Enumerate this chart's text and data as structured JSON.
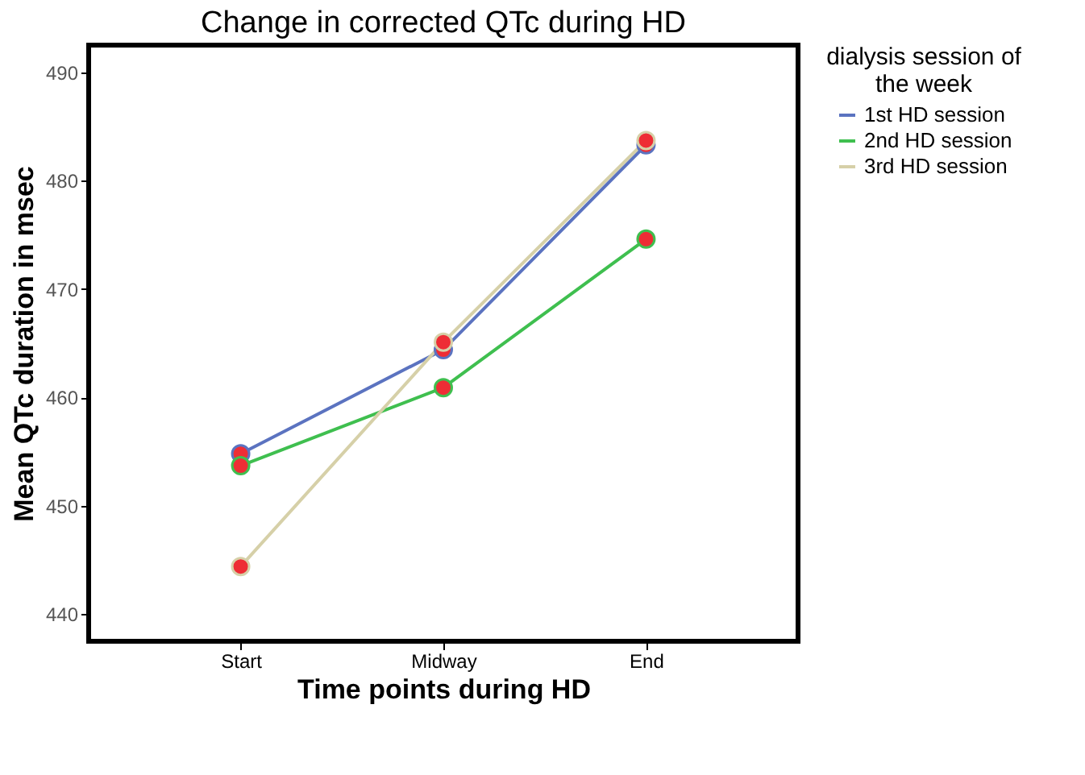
{
  "chart_data": {
    "type": "line",
    "title": "Change in corrected QTc during HD",
    "xlabel": "Time points during HD",
    "ylabel": "Mean QTc duration in msec",
    "legend_title": "dialysis session of the week",
    "categories": [
      "Start",
      "Midway",
      "End"
    ],
    "series": [
      {
        "name": "1st HD session",
        "color": "#5b73c0",
        "values": [
          454.8,
          464.4,
          483.3
        ]
      },
      {
        "name": "2nd HD session",
        "color": "#3fbf4f",
        "values": [
          453.7,
          460.9,
          474.6
        ]
      },
      {
        "name": "3rd HD session",
        "color": "#d6d0a8",
        "values": [
          444.4,
          465.1,
          483.7
        ]
      }
    ],
    "ylim": [
      437.5,
      492.5
    ],
    "yticks": [
      440,
      450,
      460,
      470,
      480,
      490
    ],
    "grid": false,
    "legend": "right",
    "marker": "circle",
    "line_style": "solid"
  }
}
